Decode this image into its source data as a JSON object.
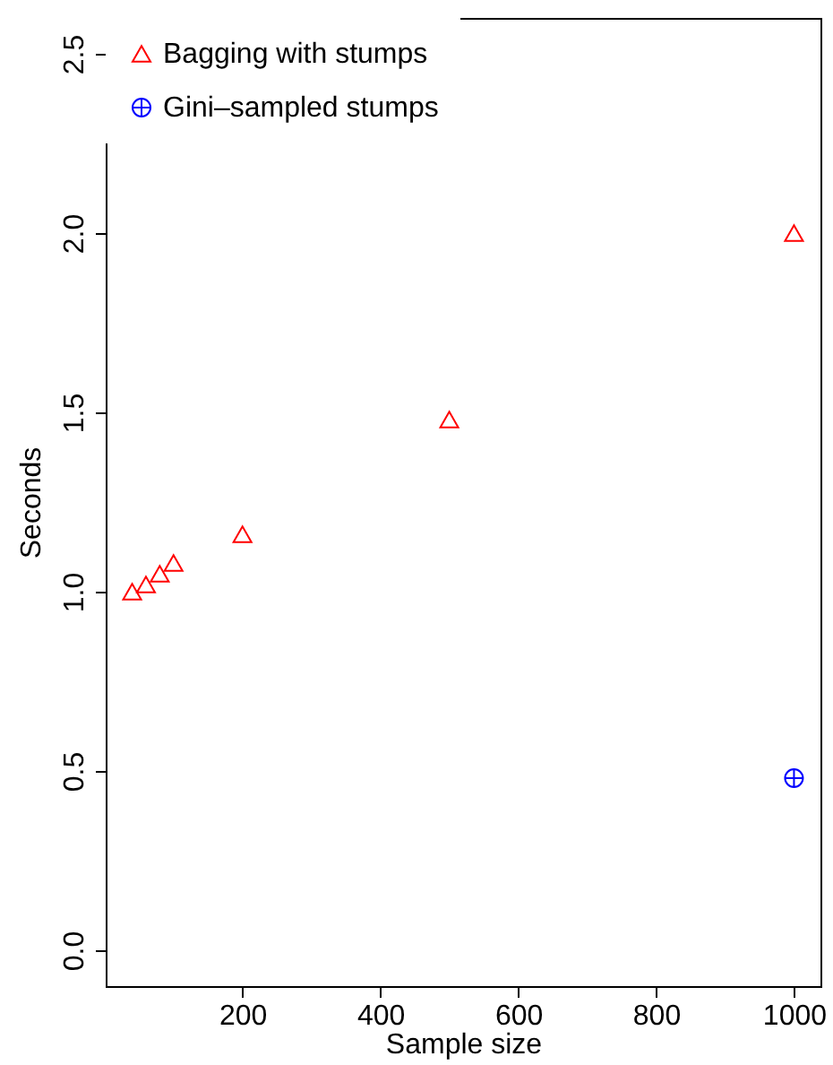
{
  "chart_data": {
    "type": "scatter",
    "xlabel": "Sample size",
    "ylabel": "Seconds",
    "xlim": [
      1.6,
      1038.4
    ],
    "ylim": [
      -0.1,
      2.6
    ],
    "xticks": [
      200,
      400,
      600,
      800,
      1000
    ],
    "yticks": [
      {
        "value": 0,
        "label": "0.0"
      },
      {
        "value": 0.5,
        "label": "0.5"
      },
      {
        "value": 1,
        "label": "1.0"
      },
      {
        "value": 1.5,
        "label": "1.5"
      },
      {
        "value": 2,
        "label": "2.0"
      },
      {
        "value": 2.5,
        "label": "2.5"
      }
    ],
    "grid": false,
    "legend": "top left",
    "series": [
      {
        "name": "Bagging with stumps",
        "color": "#ff0000",
        "marker": "triangle",
        "x": [
          40,
          60,
          80,
          100,
          200,
          500,
          1000
        ],
        "values": [
          1.0,
          1.02,
          1.05,
          1.08,
          1.16,
          1.48,
          2.0
        ]
      },
      {
        "name": "Gini–sampled stumps",
        "color": "#0000ff",
        "marker": "cross",
        "x": [
          1000
        ],
        "values": [
          0.48
        ]
      }
    ]
  }
}
